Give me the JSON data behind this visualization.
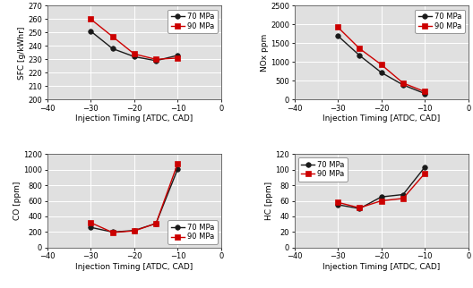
{
  "x": [
    -30,
    -25,
    -20,
    -15,
    -10
  ],
  "sfc_70": [
    251,
    238,
    232,
    229,
    233
  ],
  "sfc_90": [
    260,
    247,
    234,
    230,
    231
  ],
  "nox_70": [
    1700,
    1175,
    720,
    390,
    160
  ],
  "nox_90": [
    1930,
    1360,
    930,
    440,
    210
  ],
  "co_70": [
    260,
    200,
    220,
    310,
    1010
  ],
  "co_90": [
    320,
    195,
    215,
    310,
    1080
  ],
  "hc_70": [
    55,
    50,
    65,
    68,
    103
  ],
  "hc_90": [
    58,
    51,
    60,
    63,
    95
  ],
  "color_70": "#1a1a1a",
  "color_90": "#cc0000",
  "marker_70": "o",
  "marker_90": "s",
  "label_70": "70 MPa",
  "label_90": "90 MPa",
  "xlabel": "Injection Timing [ATDC, CAD]",
  "ylabel_sfc": "SFC [g/kWhr]",
  "ylabel_nox": "NOx ppm",
  "ylabel_co": "CO [ppm]",
  "ylabel_hc": "HC [ppm]",
  "xlim": [
    -40,
    0
  ],
  "ylim_sfc": [
    200,
    270
  ],
  "ylim_nox": [
    0,
    2500
  ],
  "ylim_co": [
    0,
    1200
  ],
  "ylim_hc": [
    0,
    120
  ],
  "xticks": [
    -40,
    -30,
    -20,
    -10,
    0
  ],
  "yticks_sfc": [
    200,
    210,
    220,
    230,
    240,
    250,
    260,
    270
  ],
  "yticks_nox": [
    0,
    500,
    1000,
    1500,
    2000,
    2500
  ],
  "yticks_co": [
    0,
    200,
    400,
    600,
    800,
    1000,
    1200
  ],
  "yticks_hc": [
    0,
    20,
    40,
    60,
    80,
    100,
    120
  ],
  "linewidth": 1.0,
  "markersize": 4,
  "fontsize_label": 6.5,
  "fontsize_tick": 6,
  "fontsize_legend": 6,
  "bg_color": "#e0e0e0",
  "legend_locs": [
    "upper right",
    "upper right",
    "lower right",
    "upper left"
  ]
}
